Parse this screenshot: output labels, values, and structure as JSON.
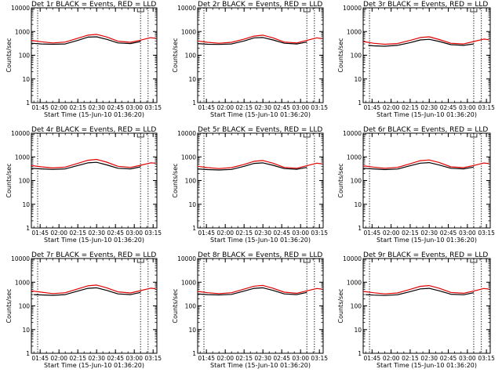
{
  "chart_data": [
    {
      "type": "line",
      "title": "Det 1r BLACK = Events, RED = LLD",
      "xlabel": "Start Time (15-Jun-10 01:36:20)",
      "ylabel": "Counts/sec",
      "ylog": true,
      "ylim": [
        1,
        10000
      ],
      "yticks": [
        1,
        10,
        100,
        1000,
        10000
      ],
      "xlim": [
        "01:38",
        "03:18"
      ],
      "xticks": [
        "01:45",
        "02:00",
        "02:15",
        "02:30",
        "02:45",
        "03:00",
        "03:15"
      ],
      "vlines": [
        "01:43",
        "03:05",
        "03:11"
      ],
      "series": [
        {
          "color": "#000000",
          "x": [
            "01:38",
            "01:46",
            "01:55",
            "02:05",
            "02:15",
            "02:23",
            "02:30",
            "02:38",
            "02:47",
            "02:57",
            "03:05"
          ],
          "y": [
            320,
            300,
            290,
            300,
            420,
            580,
            600,
            470,
            330,
            310,
            380
          ]
        },
        {
          "color": "#e00000",
          "x": [
            "01:38",
            "01:46",
            "01:55",
            "02:05",
            "02:15",
            "02:23",
            "02:30",
            "02:38",
            "02:47",
            "02:57",
            "03:05",
            "03:13",
            "03:17"
          ],
          "y": [
            420,
            370,
            330,
            360,
            520,
            700,
            760,
            590,
            390,
            350,
            430,
            550,
            520
          ]
        }
      ]
    },
    {
      "type": "line",
      "title": "Det 2r BLACK = Events, RED = LLD",
      "xlabel": "Start Time (15-Jun-10 01:36:20)",
      "ylabel": "Counts/sec",
      "ylog": true,
      "ylim": [
        1,
        10000
      ],
      "yticks": [
        1,
        10,
        100,
        1000,
        10000
      ],
      "xlim": [
        "01:38",
        "03:18"
      ],
      "xticks": [
        "01:45",
        "02:00",
        "02:15",
        "02:30",
        "02:45",
        "03:00",
        "03:15"
      ],
      "vlines": [
        "01:43",
        "03:05",
        "03:11"
      ],
      "series": [
        {
          "color": "#000000",
          "x": [
            "01:38",
            "01:46",
            "01:55",
            "02:05",
            "02:15",
            "02:23",
            "02:30",
            "02:38",
            "02:47",
            "02:57",
            "03:05"
          ],
          "y": [
            310,
            290,
            285,
            300,
            400,
            540,
            560,
            440,
            320,
            300,
            360
          ]
        },
        {
          "color": "#e00000",
          "x": [
            "01:38",
            "01:46",
            "01:55",
            "02:05",
            "02:15",
            "02:23",
            "02:30",
            "02:38",
            "02:47",
            "02:57",
            "03:05",
            "03:13",
            "03:17"
          ],
          "y": [
            400,
            350,
            320,
            350,
            480,
            640,
            700,
            540,
            360,
            330,
            420,
            540,
            500
          ]
        }
      ]
    },
    {
      "type": "line",
      "title": "Det 3r BLACK = Events, RED = LLD",
      "xlabel": "Start Time (15-Jun-10 01:36:20)",
      "ylabel": "Counts/sec",
      "ylog": true,
      "ylim": [
        1,
        10000
      ],
      "yticks": [
        1,
        10,
        100,
        1000,
        10000
      ],
      "xlim": [
        "01:38",
        "03:18"
      ],
      "xticks": [
        "01:45",
        "02:00",
        "02:15",
        "02:30",
        "02:45",
        "03:00",
        "03:15"
      ],
      "vlines": [
        "01:43",
        "03:05",
        "03:11"
      ],
      "series": [
        {
          "color": "#000000",
          "x": [
            "01:42",
            "01:46",
            "01:55",
            "02:05",
            "02:15",
            "02:23",
            "02:30",
            "02:38",
            "02:47",
            "02:57",
            "03:05"
          ],
          "y": [
            260,
            250,
            240,
            260,
            340,
            440,
            470,
            380,
            280,
            260,
            300
          ]
        },
        {
          "color": "#e00000",
          "x": [
            "01:38",
            "01:46",
            "01:55",
            "02:05",
            "02:15",
            "02:23",
            "02:30",
            "02:38",
            "02:47",
            "02:57",
            "03:05",
            "03:13",
            "03:17"
          ],
          "y": [
            380,
            320,
            290,
            310,
            420,
            560,
            600,
            460,
            320,
            300,
            380,
            480,
            450
          ]
        }
      ]
    },
    {
      "type": "line",
      "title": "Det 4r BLACK = Events, RED = LLD",
      "xlabel": "Start Time (15-Jun-10 01:36:20)",
      "ylabel": "Counts/sec",
      "ylog": true,
      "ylim": [
        1,
        10000
      ],
      "yticks": [
        1,
        10,
        100,
        1000,
        10000
      ],
      "xlim": [
        "01:38",
        "03:18"
      ],
      "xticks": [
        "01:45",
        "02:00",
        "02:15",
        "02:30",
        "02:45",
        "03:00",
        "03:15"
      ],
      "vlines": [
        "01:43",
        "03:05",
        "03:11"
      ],
      "series": [
        {
          "color": "#000000",
          "x": [
            "01:38",
            "01:46",
            "01:55",
            "02:05",
            "02:15",
            "02:23",
            "02:30",
            "02:38",
            "02:47",
            "02:57",
            "03:05"
          ],
          "y": [
            330,
            310,
            295,
            310,
            430,
            560,
            590,
            460,
            330,
            310,
            380
          ]
        },
        {
          "color": "#e00000",
          "x": [
            "01:38",
            "01:46",
            "01:55",
            "02:05",
            "02:15",
            "02:23",
            "02:30",
            "02:38",
            "02:47",
            "02:57",
            "03:05",
            "03:13",
            "03:17"
          ],
          "y": [
            430,
            380,
            340,
            370,
            530,
            720,
            780,
            600,
            400,
            360,
            440,
            560,
            540
          ]
        }
      ]
    },
    {
      "type": "line",
      "title": "Det 5r BLACK = Events, RED = LLD",
      "xlabel": "Start Time (15-Jun-10 01:36:20)",
      "ylabel": "Counts/sec",
      "ylog": true,
      "ylim": [
        1,
        10000
      ],
      "yticks": [
        1,
        10,
        100,
        1000,
        10000
      ],
      "xlim": [
        "01:38",
        "03:18"
      ],
      "xticks": [
        "01:45",
        "02:00",
        "02:15",
        "02:30",
        "02:45",
        "03:00",
        "03:15"
      ],
      "vlines": [
        "01:43",
        "03:05",
        "03:11"
      ],
      "series": [
        {
          "color": "#000000",
          "x": [
            "01:38",
            "01:46",
            "01:55",
            "02:05",
            "02:15",
            "02:23",
            "02:30",
            "02:38",
            "02:47",
            "02:57",
            "03:05"
          ],
          "y": [
            310,
            290,
            280,
            295,
            400,
            530,
            560,
            440,
            320,
            300,
            360
          ]
        },
        {
          "color": "#e00000",
          "x": [
            "01:38",
            "01:46",
            "01:55",
            "02:05",
            "02:15",
            "02:23",
            "02:30",
            "02:38",
            "02:47",
            "02:57",
            "03:05",
            "03:13",
            "03:17"
          ],
          "y": [
            400,
            350,
            320,
            350,
            480,
            650,
            700,
            540,
            360,
            330,
            420,
            540,
            510
          ]
        }
      ]
    },
    {
      "type": "line",
      "title": "Det 6r BLACK = Events, RED = LLD",
      "xlabel": "Start Time (15-Jun-10 01:36:20)",
      "ylabel": "Counts/sec",
      "ylog": true,
      "ylim": [
        1,
        10000
      ],
      "yticks": [
        1,
        10,
        100,
        1000,
        10000
      ],
      "xlim": [
        "01:38",
        "03:18"
      ],
      "xticks": [
        "01:45",
        "02:00",
        "02:15",
        "02:30",
        "02:45",
        "03:00",
        "03:15"
      ],
      "vlines": [
        "01:43",
        "03:05",
        "03:11"
      ],
      "series": [
        {
          "color": "#000000",
          "x": [
            "01:38",
            "01:46",
            "01:55",
            "02:05",
            "02:15",
            "02:23",
            "02:30",
            "02:38",
            "02:47",
            "02:57",
            "03:05"
          ],
          "y": [
            330,
            310,
            290,
            305,
            420,
            540,
            570,
            450,
            330,
            310,
            370
          ]
        },
        {
          "color": "#e00000",
          "x": [
            "01:38",
            "01:46",
            "01:55",
            "02:05",
            "02:15",
            "02:23",
            "02:30",
            "02:38",
            "02:47",
            "02:57",
            "03:05",
            "03:13",
            "03:17"
          ],
          "y": [
            420,
            370,
            330,
            360,
            510,
            690,
            740,
            570,
            380,
            350,
            430,
            550,
            520
          ]
        }
      ]
    },
    {
      "type": "line",
      "title": "Det 7r BLACK = Events, RED = LLD",
      "xlabel": "Start Time (15-Jun-10 01:36:20)",
      "ylabel": "Counts/sec",
      "ylog": true,
      "ylim": [
        1,
        10000
      ],
      "yticks": [
        1,
        10,
        100,
        1000,
        10000
      ],
      "xlim": [
        "01:38",
        "03:18"
      ],
      "xticks": [
        "01:45",
        "02:00",
        "02:15",
        "02:30",
        "02:45",
        "03:00",
        "03:15"
      ],
      "vlines": [
        "01:43",
        "03:05",
        "03:11"
      ],
      "series": [
        {
          "color": "#000000",
          "x": [
            "01:40",
            "01:46",
            "01:55",
            "02:05",
            "02:15",
            "02:23",
            "02:30",
            "02:38",
            "02:47",
            "02:57",
            "03:05"
          ],
          "y": [
            300,
            290,
            280,
            300,
            420,
            550,
            580,
            450,
            320,
            300,
            370
          ]
        },
        {
          "color": "#e00000",
          "x": [
            "01:38",
            "01:46",
            "01:55",
            "02:05",
            "02:15",
            "02:23",
            "02:30",
            "02:38",
            "02:47",
            "02:57",
            "03:05",
            "03:13",
            "03:17"
          ],
          "y": [
            430,
            380,
            330,
            360,
            520,
            700,
            760,
            580,
            390,
            350,
            440,
            560,
            530
          ]
        }
      ]
    },
    {
      "type": "line",
      "title": "Det 8r BLACK = Events, RED = LLD",
      "xlabel": "Start Time (15-Jun-10 01:36:20)",
      "ylabel": "Counts/sec",
      "ylog": true,
      "ylim": [
        1,
        10000
      ],
      "yticks": [
        1,
        10,
        100,
        1000,
        10000
      ],
      "xlim": [
        "01:38",
        "03:18"
      ],
      "xticks": [
        "01:45",
        "02:00",
        "02:15",
        "02:30",
        "02:45",
        "03:00",
        "03:15"
      ],
      "vlines": [
        "01:43",
        "03:05",
        "03:11"
      ],
      "series": [
        {
          "color": "#000000",
          "x": [
            "01:38",
            "01:46",
            "01:55",
            "02:05",
            "02:15",
            "02:23",
            "02:30",
            "02:38",
            "02:47",
            "02:57",
            "03:05"
          ],
          "y": [
            320,
            300,
            290,
            305,
            420,
            550,
            580,
            450,
            320,
            300,
            370
          ]
        },
        {
          "color": "#e00000",
          "x": [
            "01:38",
            "01:46",
            "01:55",
            "02:05",
            "02:15",
            "02:23",
            "02:30",
            "02:38",
            "02:47",
            "02:57",
            "03:05",
            "03:13",
            "03:17"
          ],
          "y": [
            410,
            360,
            330,
            360,
            510,
            680,
            730,
            560,
            380,
            340,
            430,
            540,
            510
          ]
        }
      ]
    },
    {
      "type": "line",
      "title": "Det 9r BLACK = Events, RED = LLD",
      "xlabel": "Start Time (15-Jun-10 01:36:20)",
      "ylabel": "Counts/sec",
      "ylog": true,
      "ylim": [
        1,
        10000
      ],
      "yticks": [
        1,
        10,
        100,
        1000,
        10000
      ],
      "xlim": [
        "01:38",
        "03:18"
      ],
      "xticks": [
        "01:45",
        "02:00",
        "02:15",
        "02:30",
        "02:45",
        "03:00",
        "03:15"
      ],
      "vlines": [
        "01:43",
        "03:05",
        "03:11"
      ],
      "series": [
        {
          "color": "#000000",
          "x": [
            "01:40",
            "01:46",
            "01:55",
            "02:05",
            "02:15",
            "02:23",
            "02:30",
            "02:38",
            "02:47",
            "02:57",
            "03:05"
          ],
          "y": [
            300,
            285,
            275,
            295,
            400,
            520,
            550,
            430,
            310,
            295,
            360
          ]
        },
        {
          "color": "#e00000",
          "x": [
            "01:38",
            "01:46",
            "01:55",
            "02:05",
            "02:15",
            "02:23",
            "02:30",
            "02:38",
            "02:47",
            "02:57",
            "03:05",
            "03:13",
            "03:17"
          ],
          "y": [
            410,
            360,
            320,
            350,
            500,
            670,
            720,
            550,
            370,
            340,
            420,
            540,
            510
          ]
        }
      ]
    }
  ]
}
